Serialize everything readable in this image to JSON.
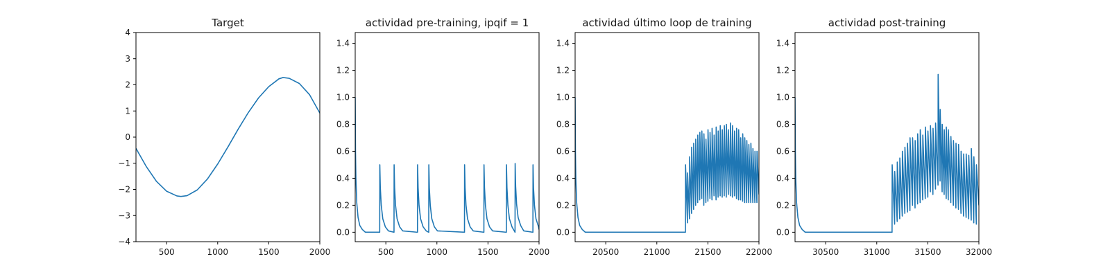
{
  "colors": {
    "line": "#1f77b4",
    "axes": "#000000",
    "background": "#ffffff"
  },
  "chart_data": [
    {
      "type": "line",
      "title": "Target",
      "xlabel": "",
      "ylabel": "",
      "xlim": [
        200,
        2000
      ],
      "ylim": [
        -4,
        4
      ],
      "xticks": [
        500,
        1000,
        1500,
        2000
      ],
      "yticks": [
        -4,
        -3,
        -2,
        -1,
        0,
        1,
        2,
        3,
        4
      ],
      "grid": false,
      "series": [
        {
          "x": [
            200,
            300,
            400,
            500,
            600,
            640,
            700,
            800,
            900,
            1000,
            1100,
            1200,
            1300,
            1400,
            1500,
            1600,
            1640,
            1700,
            1800,
            1900,
            2000
          ],
          "y": [
            -0.43,
            -1.12,
            -1.69,
            -2.07,
            -2.25,
            -2.27,
            -2.24,
            -2.02,
            -1.6,
            -1.03,
            -0.38,
            0.3,
            0.94,
            1.5,
            1.93,
            2.23,
            2.28,
            2.25,
            2.05,
            1.62,
            0.92
          ]
        }
      ]
    },
    {
      "type": "line",
      "title": "actividad pre-training, ipqif = 1",
      "xlabel": "",
      "ylabel": "",
      "xlim": [
        200,
        2000
      ],
      "ylim": [
        -0.07,
        1.48
      ],
      "xticks": [
        500,
        1000,
        1500,
        2000
      ],
      "yticks": [
        0.0,
        0.2,
        0.4,
        0.6,
        0.8,
        1.0,
        1.2,
        1.4
      ],
      "grid": false,
      "series": [
        {
          "x": [
            200,
            203,
            207,
            215,
            228,
            245,
            270,
            300,
            440,
            441,
            446,
            455,
            470,
            495,
            525,
            580,
            581,
            586,
            595,
            610,
            635,
            665,
            810,
            811,
            816,
            825,
            840,
            865,
            895,
            920,
            921,
            926,
            935,
            950,
            975,
            1005,
            1270,
            1271,
            1276,
            1285,
            1300,
            1325,
            1355,
            1460,
            1461,
            1466,
            1475,
            1490,
            1515,
            1545,
            1680,
            1681,
            1686,
            1695,
            1710,
            1735,
            1765,
            1766,
            1771,
            1780,
            1795,
            1820,
            1850,
            1940,
            1941,
            1946,
            1955,
            1970,
            1995,
            2000
          ],
          "y": [
            1.0,
            0.6,
            0.4,
            0.22,
            0.11,
            0.05,
            0.02,
            0.0,
            0.0,
            0.5,
            0.33,
            0.2,
            0.1,
            0.04,
            0.01,
            0.0,
            0.5,
            0.33,
            0.2,
            0.1,
            0.04,
            0.01,
            0.0,
            0.5,
            0.33,
            0.2,
            0.1,
            0.04,
            0.01,
            0.0,
            0.5,
            0.33,
            0.2,
            0.1,
            0.04,
            0.01,
            0.0,
            0.5,
            0.33,
            0.2,
            0.1,
            0.04,
            0.01,
            0.0,
            0.5,
            0.33,
            0.2,
            0.1,
            0.04,
            0.01,
            0.0,
            0.5,
            0.33,
            0.2,
            0.1,
            0.04,
            0.0,
            0.51,
            0.34,
            0.21,
            0.11,
            0.05,
            0.01,
            0.0,
            0.5,
            0.33,
            0.2,
            0.1,
            0.04,
            0.02
          ]
        }
      ]
    },
    {
      "type": "line",
      "title": "actividad último loop de training",
      "xlabel": "",
      "ylabel": "",
      "xlim": [
        20200,
        22000
      ],
      "ylim": [
        -0.07,
        1.48
      ],
      "xticks": [
        20500,
        21000,
        21500,
        22000
      ],
      "yticks": [
        0.0,
        0.2,
        0.4,
        0.6,
        0.8,
        1.0,
        1.2,
        1.4
      ],
      "grid": false,
      "series": [
        {
          "x": [
            20200,
            20203,
            20207,
            20215,
            20228,
            20245,
            20270,
            20300,
            21280,
            21281,
            21300,
            21301,
            21320,
            21321,
            21340,
            21341,
            21360,
            21361,
            21380,
            21381,
            21400,
            21401,
            21420,
            21421,
            21440,
            21441,
            21460,
            21461,
            21480,
            21481,
            21500,
            21501,
            21520,
            21521,
            21540,
            21541,
            21560,
            21561,
            21580,
            21581,
            21600,
            21601,
            21620,
            21621,
            21640,
            21641,
            21660,
            21661,
            21680,
            21681,
            21700,
            21701,
            21720,
            21721,
            21740,
            21741,
            21760,
            21761,
            21780,
            21781,
            21800,
            21801,
            21820,
            21821,
            21840,
            21841,
            21860,
            21861,
            21880,
            21881,
            21900,
            21901,
            21920,
            21921,
            21940,
            21941,
            21960,
            21961,
            21980,
            21981,
            22000
          ],
          "y": [
            1.0,
            0.6,
            0.4,
            0.22,
            0.11,
            0.05,
            0.02,
            0.0,
            0.0,
            0.5,
            0.07,
            0.44,
            0.1,
            0.56,
            0.14,
            0.63,
            0.17,
            0.66,
            0.2,
            0.69,
            0.22,
            0.72,
            0.24,
            0.74,
            0.25,
            0.75,
            0.2,
            0.73,
            0.22,
            0.69,
            0.23,
            0.76,
            0.25,
            0.74,
            0.24,
            0.77,
            0.27,
            0.72,
            0.24,
            0.78,
            0.26,
            0.75,
            0.27,
            0.79,
            0.26,
            0.76,
            0.27,
            0.79,
            0.26,
            0.8,
            0.28,
            0.76,
            0.27,
            0.81,
            0.26,
            0.79,
            0.27,
            0.75,
            0.25,
            0.77,
            0.24,
            0.76,
            0.24,
            0.7,
            0.23,
            0.73,
            0.22,
            0.7,
            0.22,
            0.68,
            0.22,
            0.65,
            0.22,
            0.66,
            0.22,
            0.62,
            0.22,
            0.6,
            0.22,
            0.6,
            0.28
          ]
        }
      ]
    },
    {
      "type": "line",
      "title": "actividad post-training",
      "xlabel": "",
      "ylabel": "",
      "xlim": [
        30200,
        32000
      ],
      "ylim": [
        -0.07,
        1.48
      ],
      "xticks": [
        30500,
        31000,
        31500,
        32000
      ],
      "yticks": [
        0.0,
        0.2,
        0.4,
        0.6,
        0.8,
        1.0,
        1.2,
        1.4
      ],
      "grid": false,
      "series": [
        {
          "x": [
            30200,
            30203,
            30207,
            30215,
            30228,
            30245,
            30270,
            30300,
            31150,
            31151,
            31175,
            31176,
            31200,
            31201,
            31225,
            31226,
            31250,
            31251,
            31275,
            31276,
            31300,
            31301,
            31325,
            31326,
            31350,
            31351,
            31375,
            31376,
            31400,
            31401,
            31425,
            31426,
            31450,
            31451,
            31475,
            31476,
            31500,
            31501,
            31525,
            31526,
            31550,
            31551,
            31575,
            31576,
            31600,
            31601,
            31620,
            31621,
            31640,
            31641,
            31660,
            31661,
            31680,
            31681,
            31700,
            31701,
            31725,
            31726,
            31750,
            31751,
            31775,
            31776,
            31800,
            31801,
            31825,
            31826,
            31850,
            31851,
            31875,
            31876,
            31900,
            31901,
            31925,
            31926,
            31950,
            31951,
            31975,
            31976,
            32000
          ],
          "y": [
            1.0,
            0.6,
            0.4,
            0.22,
            0.11,
            0.05,
            0.02,
            0.0,
            0.0,
            0.5,
            0.06,
            0.45,
            0.08,
            0.52,
            0.1,
            0.55,
            0.12,
            0.6,
            0.14,
            0.63,
            0.15,
            0.66,
            0.16,
            0.7,
            0.2,
            0.7,
            0.18,
            0.68,
            0.21,
            0.73,
            0.22,
            0.76,
            0.24,
            0.72,
            0.25,
            0.78,
            0.26,
            0.75,
            0.3,
            0.79,
            0.28,
            0.77,
            0.32,
            0.81,
            0.35,
            1.17,
            0.38,
            0.91,
            0.3,
            0.8,
            0.28,
            0.76,
            0.25,
            0.78,
            0.24,
            0.76,
            0.22,
            0.71,
            0.2,
            0.68,
            0.18,
            0.66,
            0.17,
            0.65,
            0.14,
            0.6,
            0.12,
            0.58,
            0.11,
            0.58,
            0.1,
            0.57,
            0.09,
            0.62,
            0.07,
            0.56,
            0.06,
            0.5,
            0.2
          ]
        }
      ]
    }
  ]
}
